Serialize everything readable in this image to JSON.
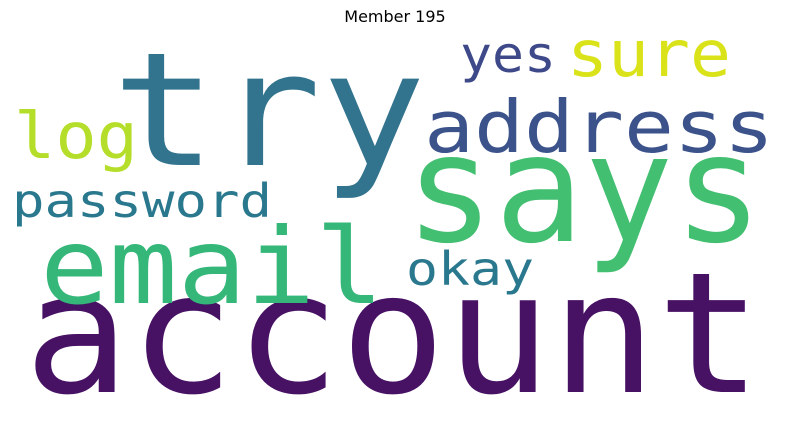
{
  "title": "Member 195",
  "words": [
    {
      "text": "account",
      "color": "#471164"
    },
    {
      "text": "try",
      "color": "#32738e"
    },
    {
      "text": "says",
      "color": "#43bf71"
    },
    {
      "text": "email",
      "color": "#35b779"
    },
    {
      "text": "address",
      "color": "#3b528b"
    },
    {
      "text": "sure",
      "color": "#dae319"
    },
    {
      "text": "yes",
      "color": "#3e4989"
    },
    {
      "text": "log",
      "color": "#b5de2b"
    },
    {
      "text": "password",
      "color": "#2a788e"
    },
    {
      "text": "okay",
      "color": "#2a788e"
    }
  ]
}
